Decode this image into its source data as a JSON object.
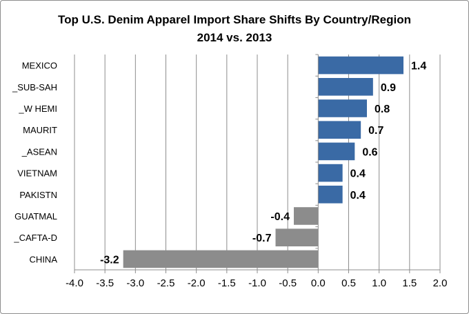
{
  "chart_data": {
    "type": "bar",
    "orientation": "horizontal",
    "title_lines": [
      "Top U.S. Denim Apparel Import Share Shifts By Country/Region",
      "2014 vs. 2013"
    ],
    "categories": [
      "MEXICO",
      "_SUB-SAH",
      "_W HEMI",
      "MAURIT",
      "_ASEAN",
      "VIETNAM",
      "PAKISTN",
      "GUATMAL",
      "_CAFTA-D",
      "CHINA"
    ],
    "values": [
      1.4,
      0.9,
      0.8,
      0.7,
      0.6,
      0.4,
      0.4,
      -0.4,
      -0.7,
      -3.2
    ],
    "value_labels": [
      "1.4",
      "0.9",
      "0.8",
      "0.7",
      "0.6",
      "0.4",
      "0.4",
      "-0.4",
      "-0.7",
      "-3.2"
    ],
    "xlim": [
      -4.0,
      2.0
    ],
    "x_ticks": [
      "-4.0",
      "-3.5",
      "-3.0",
      "-2.5",
      "-2.0",
      "-1.5",
      "-1.0",
      "-0.5",
      "0.0",
      "0.5",
      "1.0",
      "1.5",
      "2.0"
    ],
    "grid": "vertical",
    "legend": "none",
    "colors": {
      "positive": "#3a6aa5",
      "negative": "#8c8c8c",
      "grid": "#8c8c8c",
      "axis": "#8c8c8c"
    }
  }
}
